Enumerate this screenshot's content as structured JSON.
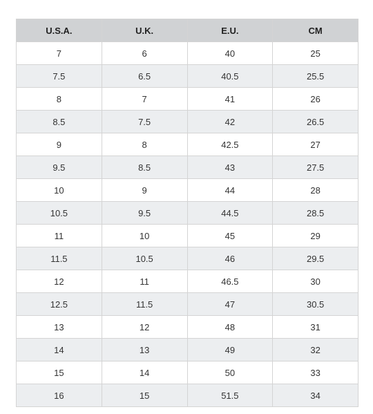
{
  "table": {
    "columns": [
      "U.S.A.",
      "U.K.",
      "E.U.",
      "CM"
    ],
    "rows": [
      [
        "7",
        "6",
        "40",
        "25"
      ],
      [
        "7.5",
        "6.5",
        "40.5",
        "25.5"
      ],
      [
        "8",
        "7",
        "41",
        "26"
      ],
      [
        "8.5",
        "7.5",
        "42",
        "26.5"
      ],
      [
        "9",
        "8",
        "42.5",
        "27"
      ],
      [
        "9.5",
        "8.5",
        "43",
        "27.5"
      ],
      [
        "10",
        "9",
        "44",
        "28"
      ],
      [
        "10.5",
        "9.5",
        "44.5",
        "28.5"
      ],
      [
        "11",
        "10",
        "45",
        "29"
      ],
      [
        "11.5",
        "10.5",
        "46",
        "29.5"
      ],
      [
        "12",
        "11",
        "46.5",
        "30"
      ],
      [
        "12.5",
        "11.5",
        "47",
        "30.5"
      ],
      [
        "13",
        "12",
        "48",
        "31"
      ],
      [
        "14",
        "13",
        "49",
        "32"
      ],
      [
        "15",
        "14",
        "50",
        "33"
      ],
      [
        "16",
        "15",
        "51.5",
        "34"
      ]
    ]
  },
  "colors": {
    "header_bg": "#d0d2d4",
    "stripe_bg": "#eceef0",
    "border": "#d4d4d4"
  }
}
